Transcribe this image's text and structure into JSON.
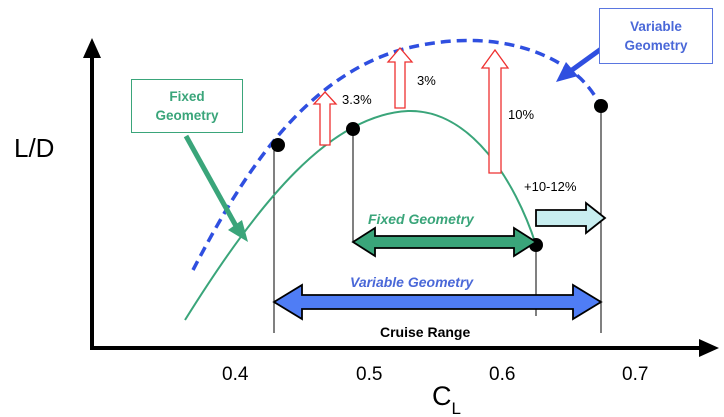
{
  "y_axis_label": "L/D",
  "x_axis_label_main": "C",
  "x_axis_label_sub": "L",
  "x_ticks": [
    "0.4",
    "0.5",
    "0.6",
    "0.7"
  ],
  "callouts": {
    "fixed": "Fixed\nGeometry",
    "variable": "Variable\nGeometry"
  },
  "improvement_labels": [
    "3.3%",
    "3%",
    "10%"
  ],
  "range_labels": {
    "increase": "+10-12%",
    "fixed_geometry": "Fixed Geometry",
    "variable_geometry": "Variable Geometry",
    "cruise_range": "Cruise Range"
  },
  "colors": {
    "fixed": "#3aa57a",
    "variable": "#2f4fe0",
    "variable_arrow": "#4f7df5",
    "improvement_arrow": "#ee3030",
    "increase_arrow": "#c8eef0",
    "axis": "#000000"
  }
}
